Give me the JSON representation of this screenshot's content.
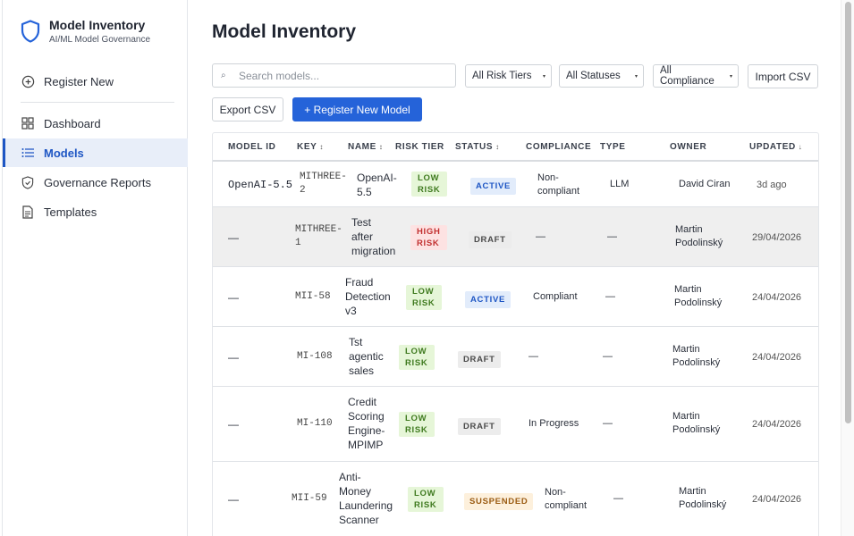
{
  "brand": {
    "title": "Model Inventory",
    "subtitle": "AI/ML Model Governance",
    "icon": "shield-icon"
  },
  "sidebar": {
    "items": [
      {
        "label": "Register New",
        "icon": "plus-circle-icon"
      },
      {
        "label": "Dashboard",
        "icon": "grid-icon"
      },
      {
        "label": "Models",
        "icon": "list-icon",
        "active": true
      },
      {
        "label": "Governance Reports",
        "icon": "shield-check-icon"
      },
      {
        "label": "Templates",
        "icon": "document-icon"
      }
    ]
  },
  "page": {
    "title": "Model Inventory"
  },
  "filters": {
    "search_placeholder": "Search models...",
    "risk_tier": "All Risk Tiers",
    "status": "All Statuses",
    "compliance": "All Compliance"
  },
  "actions": {
    "import": "Import CSV",
    "export": "Export CSV",
    "register": "+ Register New Model"
  },
  "table": {
    "headers": {
      "model_id": "MODEL ID",
      "key": "KEY",
      "name": "NAME",
      "risk": "RISK TIER",
      "status": "STATUS",
      "compliance": "COMPLIANCE",
      "type": "TYPE",
      "owner": "OWNER",
      "updated": "UPDATED"
    },
    "sort_icons": {
      "key": "↕",
      "name": "↕",
      "status": "↕",
      "updated": "↓"
    },
    "rows": [
      {
        "model_id": "OpenAI-5.5",
        "key1": "MITHREE-",
        "key2": "2",
        "name": [
          "OpenAI-",
          "5.5"
        ],
        "risk1": "LOW",
        "risk2": "RISK",
        "status": "ACTIVE",
        "compliance": [
          "Non-",
          "compliant"
        ],
        "type": "LLM",
        "owner": [
          "David Ciran"
        ],
        "updated": "3d ago"
      },
      {
        "model_id": "—",
        "key1": "MITHREE-",
        "key2": "1",
        "name": [
          "Test",
          "after",
          "migration"
        ],
        "risk1": "HIGH",
        "risk2": "RISK",
        "status": "DRAFT",
        "compliance": [
          "—"
        ],
        "type": "—",
        "owner": [
          "Martin",
          "Podolinský"
        ],
        "updated": "29/04/2026"
      },
      {
        "model_id": "—",
        "key1": "MII-58",
        "key2": "",
        "name": [
          "Fraud",
          "Detection",
          "v3"
        ],
        "risk1": "LOW",
        "risk2": "RISK",
        "status": "ACTIVE",
        "compliance": [
          "Compliant"
        ],
        "type": "—",
        "owner": [
          "Martin",
          "Podolinský"
        ],
        "updated": "24/04/2026"
      },
      {
        "model_id": "—",
        "key1": "MI-108",
        "key2": "",
        "name": [
          "Tst",
          "agentic",
          "sales"
        ],
        "risk1": "LOW",
        "risk2": "RISK",
        "status": "DRAFT",
        "compliance": [
          "—"
        ],
        "type": "—",
        "owner": [
          "Martin",
          "Podolinský"
        ],
        "updated": "24/04/2026"
      },
      {
        "model_id": "—",
        "key1": "MI-110",
        "key2": "",
        "name": [
          "Credit",
          "Scoring",
          "Engine-",
          "MPIMP"
        ],
        "risk1": "LOW",
        "risk2": "RISK",
        "status": "DRAFT",
        "compliance": [
          "In Progress"
        ],
        "type": "—",
        "owner": [
          "Martin",
          "Podolinský"
        ],
        "updated": "24/04/2026"
      },
      {
        "model_id": "—",
        "key1": "MII-59",
        "key2": "",
        "name": [
          "Anti-",
          "Money",
          "Laundering",
          "Scanner"
        ],
        "risk1": "LOW",
        "risk2": "RISK",
        "status": "SUSPENDED",
        "compliance": [
          "Non-",
          "compliant"
        ],
        "type": "—",
        "owner": [
          "Martin",
          "Podolinský"
        ],
        "updated": "24/04/2026"
      }
    ]
  },
  "colors": {
    "accent": "#2563d9",
    "active_nav_bg": "#e8eef9",
    "low_risk_bg": "#e6f6d8",
    "high_risk_bg": "#fde2e2"
  }
}
